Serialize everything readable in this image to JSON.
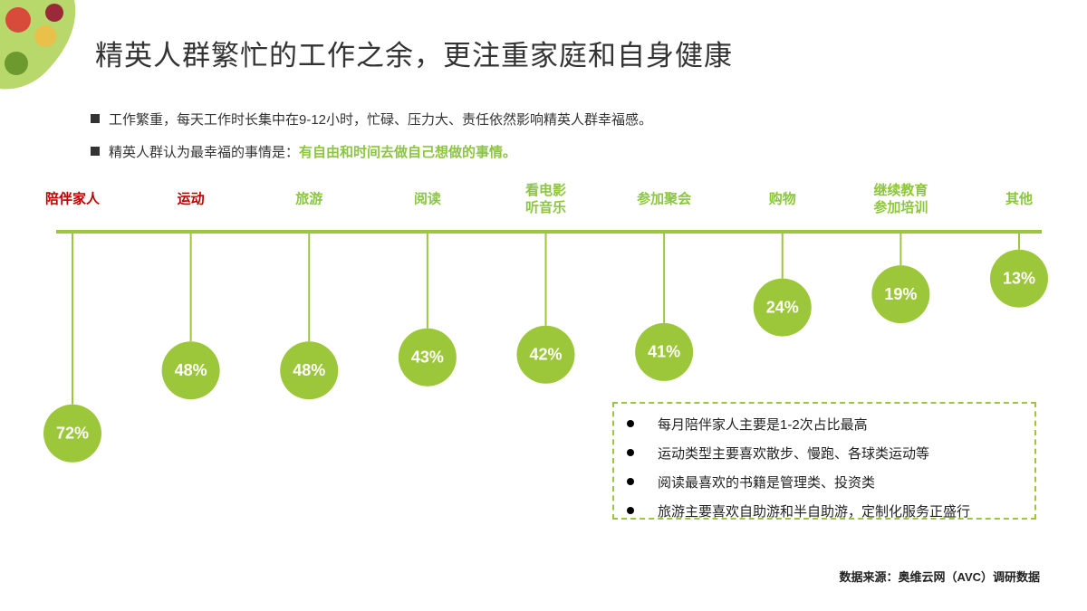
{
  "header": {
    "title": "精英人群繁忙的工作之余，更注重家庭和自身健康"
  },
  "bullets": [
    {
      "text": "工作繁重，每天工作时长集中在9-12小时，忙碌、压力大、责任依然影响精英人群幸福感。"
    },
    {
      "text": "精英人群认为最幸福的事情是：",
      "highlight": "有自由和时间去做自己想做的事情。"
    }
  ],
  "chart_data": {
    "type": "lollipop",
    "categories": [
      "陪伴家人",
      "运动",
      "旅游",
      "阅读",
      "看电影\n听音乐",
      "参加聚会",
      "购物",
      "继续教育\n参加培训",
      "其他"
    ],
    "category_colors": [
      "#c00000",
      "#c00000",
      "#8cc63f",
      "#8cc63f",
      "#8cc63f",
      "#8cc63f",
      "#8cc63f",
      "#8cc63f",
      "#8cc63f"
    ],
    "values": [
      72,
      48,
      48,
      43,
      42,
      41,
      24,
      19,
      13
    ],
    "value_labels": [
      "72%",
      "48%",
      "48%",
      "43%",
      "42%",
      "41%",
      "24%",
      "19%",
      "13%"
    ],
    "color": "#9dc73b"
  },
  "notes": [
    "每月陪伴家人主要是1-2次占比最高",
    "运动类型主要喜欢散步、慢跑、各球类运动等",
    "阅读最喜欢的书籍是管理类、投资类",
    "旅游主要喜欢自助游和半自助游，定制化服务正盛行"
  ],
  "source": "数据来源：奥维云网（AVC）调研数据"
}
